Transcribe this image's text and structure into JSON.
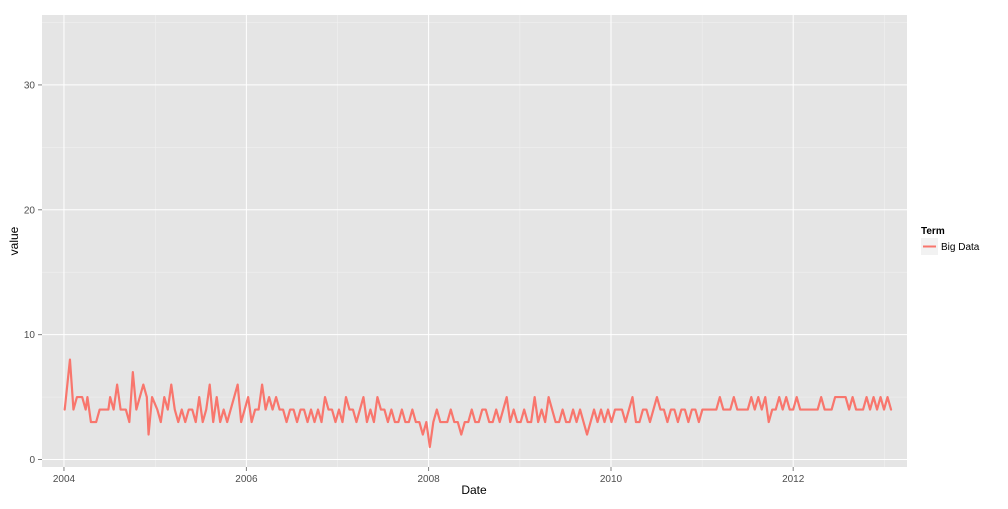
{
  "chart_data": {
    "type": "line",
    "title": "",
    "xlabel": "Date",
    "ylabel": "value",
    "x_ticks": [
      "2004",
      "2006",
      "2008",
      "2010",
      "2012"
    ],
    "y_ticks": [
      0,
      10,
      20,
      30
    ],
    "xlim": [
      "2003-10-05",
      "2013-04-01"
    ],
    "ylim": [
      -0.6,
      35.6
    ],
    "grid": true,
    "legend": {
      "title": "Term",
      "position": "right"
    },
    "series": [
      {
        "name": "Big Data",
        "color": "#F8766D",
        "points": [
          [
            "2004-01-04",
            4
          ],
          [
            "2004-01-25",
            8
          ],
          [
            "2004-02-08",
            4
          ],
          [
            "2004-02-22",
            5
          ],
          [
            "2004-03-14",
            5
          ],
          [
            "2004-03-28",
            4
          ],
          [
            "2004-04-04",
            5
          ],
          [
            "2004-04-18",
            3
          ],
          [
            "2004-05-09",
            3
          ],
          [
            "2004-05-23",
            4
          ],
          [
            "2004-06-13",
            4
          ],
          [
            "2004-06-27",
            4
          ],
          [
            "2004-07-04",
            5
          ],
          [
            "2004-07-18",
            4
          ],
          [
            "2004-08-01",
            6
          ],
          [
            "2004-08-15",
            4
          ],
          [
            "2004-09-05",
            4
          ],
          [
            "2004-09-19",
            3
          ],
          [
            "2004-10-03",
            7
          ],
          [
            "2004-10-17",
            4
          ],
          [
            "2004-10-31",
            5
          ],
          [
            "2004-11-14",
            6
          ],
          [
            "2004-11-28",
            5
          ],
          [
            "2004-12-05",
            2
          ],
          [
            "2004-12-19",
            5
          ],
          [
            "2005-01-09",
            4
          ],
          [
            "2005-01-23",
            3
          ],
          [
            "2005-02-06",
            5
          ],
          [
            "2005-02-20",
            4
          ],
          [
            "2005-03-06",
            6
          ],
          [
            "2005-03-20",
            4
          ],
          [
            "2005-04-03",
            3
          ],
          [
            "2005-04-17",
            4
          ],
          [
            "2005-05-01",
            3
          ],
          [
            "2005-05-15",
            4
          ],
          [
            "2005-05-29",
            4
          ],
          [
            "2005-06-12",
            3
          ],
          [
            "2005-06-26",
            5
          ],
          [
            "2005-07-10",
            3
          ],
          [
            "2005-07-24",
            4
          ],
          [
            "2005-08-07",
            6
          ],
          [
            "2005-08-21",
            3
          ],
          [
            "2005-09-04",
            5
          ],
          [
            "2005-09-18",
            3
          ],
          [
            "2005-10-02",
            4
          ],
          [
            "2005-10-16",
            3
          ],
          [
            "2005-10-30",
            4
          ],
          [
            "2005-11-13",
            5
          ],
          [
            "2005-11-27",
            6
          ],
          [
            "2005-12-11",
            3
          ],
          [
            "2005-12-25",
            4
          ],
          [
            "2006-01-08",
            5
          ],
          [
            "2006-01-22",
            3
          ],
          [
            "2006-02-05",
            4
          ],
          [
            "2006-02-19",
            4
          ],
          [
            "2006-03-05",
            6
          ],
          [
            "2006-03-19",
            4
          ],
          [
            "2006-04-02",
            5
          ],
          [
            "2006-04-16",
            4
          ],
          [
            "2006-04-30",
            5
          ],
          [
            "2006-05-14",
            4
          ],
          [
            "2006-05-28",
            4
          ],
          [
            "2006-06-11",
            3
          ],
          [
            "2006-06-25",
            4
          ],
          [
            "2006-07-09",
            4
          ],
          [
            "2006-07-23",
            3
          ],
          [
            "2006-08-06",
            4
          ],
          [
            "2006-08-20",
            4
          ],
          [
            "2006-09-03",
            3
          ],
          [
            "2006-09-17",
            4
          ],
          [
            "2006-10-01",
            3
          ],
          [
            "2006-10-15",
            4
          ],
          [
            "2006-10-29",
            3
          ],
          [
            "2006-11-12",
            5
          ],
          [
            "2006-11-26",
            4
          ],
          [
            "2006-12-10",
            4
          ],
          [
            "2006-12-24",
            3
          ],
          [
            "2007-01-07",
            4
          ],
          [
            "2007-01-21",
            3
          ],
          [
            "2007-02-04",
            5
          ],
          [
            "2007-02-18",
            4
          ],
          [
            "2007-03-04",
            4
          ],
          [
            "2007-03-18",
            3
          ],
          [
            "2007-04-01",
            4
          ],
          [
            "2007-04-15",
            5
          ],
          [
            "2007-04-29",
            3
          ],
          [
            "2007-05-13",
            4
          ],
          [
            "2007-05-27",
            3
          ],
          [
            "2007-06-10",
            5
          ],
          [
            "2007-06-24",
            4
          ],
          [
            "2007-07-08",
            4
          ],
          [
            "2007-07-22",
            3
          ],
          [
            "2007-08-05",
            4
          ],
          [
            "2007-08-19",
            3
          ],
          [
            "2007-09-02",
            3
          ],
          [
            "2007-09-16",
            4
          ],
          [
            "2007-09-30",
            3
          ],
          [
            "2007-10-14",
            3
          ],
          [
            "2007-10-28",
            4
          ],
          [
            "2007-11-11",
            3
          ],
          [
            "2007-11-25",
            3
          ],
          [
            "2007-12-09",
            2
          ],
          [
            "2007-12-23",
            3
          ],
          [
            "2008-01-06",
            1
          ],
          [
            "2008-01-20",
            3
          ],
          [
            "2008-02-03",
            4
          ],
          [
            "2008-02-17",
            3
          ],
          [
            "2008-03-02",
            3
          ],
          [
            "2008-03-16",
            3
          ],
          [
            "2008-03-30",
            4
          ],
          [
            "2008-04-13",
            3
          ],
          [
            "2008-04-27",
            3
          ],
          [
            "2008-05-11",
            2
          ],
          [
            "2008-05-25",
            3
          ],
          [
            "2008-06-08",
            3
          ],
          [
            "2008-06-22",
            4
          ],
          [
            "2008-07-06",
            3
          ],
          [
            "2008-07-20",
            3
          ],
          [
            "2008-08-03",
            4
          ],
          [
            "2008-08-17",
            4
          ],
          [
            "2008-08-31",
            3
          ],
          [
            "2008-09-14",
            3
          ],
          [
            "2008-09-28",
            4
          ],
          [
            "2008-10-12",
            3
          ],
          [
            "2008-10-26",
            4
          ],
          [
            "2008-11-09",
            5
          ],
          [
            "2008-11-23",
            3
          ],
          [
            "2008-12-07",
            4
          ],
          [
            "2008-12-21",
            3
          ],
          [
            "2009-01-04",
            3
          ],
          [
            "2009-01-18",
            4
          ],
          [
            "2009-02-01",
            3
          ],
          [
            "2009-02-15",
            3
          ],
          [
            "2009-03-01",
            5
          ],
          [
            "2009-03-15",
            3
          ],
          [
            "2009-03-29",
            4
          ],
          [
            "2009-04-12",
            3
          ],
          [
            "2009-04-26",
            5
          ],
          [
            "2009-05-10",
            4
          ],
          [
            "2009-05-24",
            3
          ],
          [
            "2009-06-07",
            3
          ],
          [
            "2009-06-21",
            4
          ],
          [
            "2009-07-05",
            3
          ],
          [
            "2009-07-19",
            3
          ],
          [
            "2009-08-02",
            4
          ],
          [
            "2009-08-16",
            3
          ],
          [
            "2009-08-30",
            4
          ],
          [
            "2009-09-13",
            3
          ],
          [
            "2009-09-27",
            2
          ],
          [
            "2009-10-11",
            3
          ],
          [
            "2009-10-25",
            4
          ],
          [
            "2009-11-08",
            3
          ],
          [
            "2009-11-22",
            4
          ],
          [
            "2009-12-06",
            3
          ],
          [
            "2009-12-20",
            4
          ],
          [
            "2010-01-03",
            3
          ],
          [
            "2010-01-17",
            4
          ],
          [
            "2010-01-31",
            4
          ],
          [
            "2010-02-14",
            4
          ],
          [
            "2010-02-28",
            3
          ],
          [
            "2010-03-14",
            4
          ],
          [
            "2010-03-28",
            5
          ],
          [
            "2010-04-11",
            3
          ],
          [
            "2010-04-25",
            3
          ],
          [
            "2010-05-09",
            4
          ],
          [
            "2010-05-23",
            4
          ],
          [
            "2010-06-06",
            3
          ],
          [
            "2010-06-20",
            4
          ],
          [
            "2010-07-04",
            5
          ],
          [
            "2010-07-18",
            4
          ],
          [
            "2010-08-01",
            4
          ],
          [
            "2010-08-15",
            3
          ],
          [
            "2010-08-29",
            4
          ],
          [
            "2010-09-12",
            4
          ],
          [
            "2010-09-26",
            3
          ],
          [
            "2010-10-10",
            4
          ],
          [
            "2010-10-24",
            4
          ],
          [
            "2010-11-07",
            3
          ],
          [
            "2010-11-21",
            4
          ],
          [
            "2010-12-05",
            4
          ],
          [
            "2010-12-19",
            3
          ],
          [
            "2011-01-02",
            4
          ],
          [
            "2011-01-16",
            4
          ],
          [
            "2011-01-30",
            4
          ],
          [
            "2011-02-13",
            4
          ],
          [
            "2011-02-27",
            4
          ],
          [
            "2011-03-13",
            5
          ],
          [
            "2011-03-27",
            4
          ],
          [
            "2011-04-10",
            4
          ],
          [
            "2011-04-24",
            4
          ],
          [
            "2011-05-08",
            5
          ],
          [
            "2011-05-22",
            4
          ],
          [
            "2011-06-05",
            4
          ],
          [
            "2011-06-19",
            4
          ],
          [
            "2011-07-03",
            4
          ],
          [
            "2011-07-17",
            5
          ],
          [
            "2011-07-31",
            4
          ],
          [
            "2011-08-14",
            5
          ],
          [
            "2011-08-28",
            4
          ],
          [
            "2011-09-11",
            5
          ],
          [
            "2011-09-25",
            3
          ],
          [
            "2011-10-09",
            4
          ],
          [
            "2011-10-23",
            4
          ],
          [
            "2011-11-06",
            5
          ],
          [
            "2011-11-20",
            4
          ],
          [
            "2011-12-04",
            5
          ],
          [
            "2011-12-18",
            4
          ],
          [
            "2012-01-01",
            4
          ],
          [
            "2012-01-15",
            5
          ],
          [
            "2012-01-29",
            4
          ],
          [
            "2012-02-12",
            4
          ],
          [
            "2012-02-26",
            4
          ],
          [
            "2012-03-11",
            4
          ],
          [
            "2012-03-25",
            4
          ],
          [
            "2012-04-08",
            4
          ],
          [
            "2012-04-22",
            5
          ],
          [
            "2012-05-06",
            4
          ],
          [
            "2012-05-20",
            4
          ],
          [
            "2012-06-03",
            4
          ],
          [
            "2012-06-17",
            5
          ],
          [
            "2012-07-01",
            5
          ],
          [
            "2012-07-15",
            5
          ],
          [
            "2012-07-29",
            5
          ],
          [
            "2012-08-12",
            4
          ],
          [
            "2012-08-26",
            5
          ],
          [
            "2012-09-09",
            4
          ],
          [
            "2012-09-23",
            4
          ],
          [
            "2012-10-07",
            4
          ],
          [
            "2012-10-21",
            5
          ],
          [
            "2012-11-04",
            4
          ],
          [
            "2012-11-18",
            5
          ],
          [
            "2012-12-02",
            4
          ],
          [
            "2012-12-16",
            5
          ],
          [
            "2012-12-30",
            4
          ],
          [
            "2013-01-13",
            5
          ],
          [
            "2013-01-27",
            4
          ]
        ]
      }
    ]
  }
}
